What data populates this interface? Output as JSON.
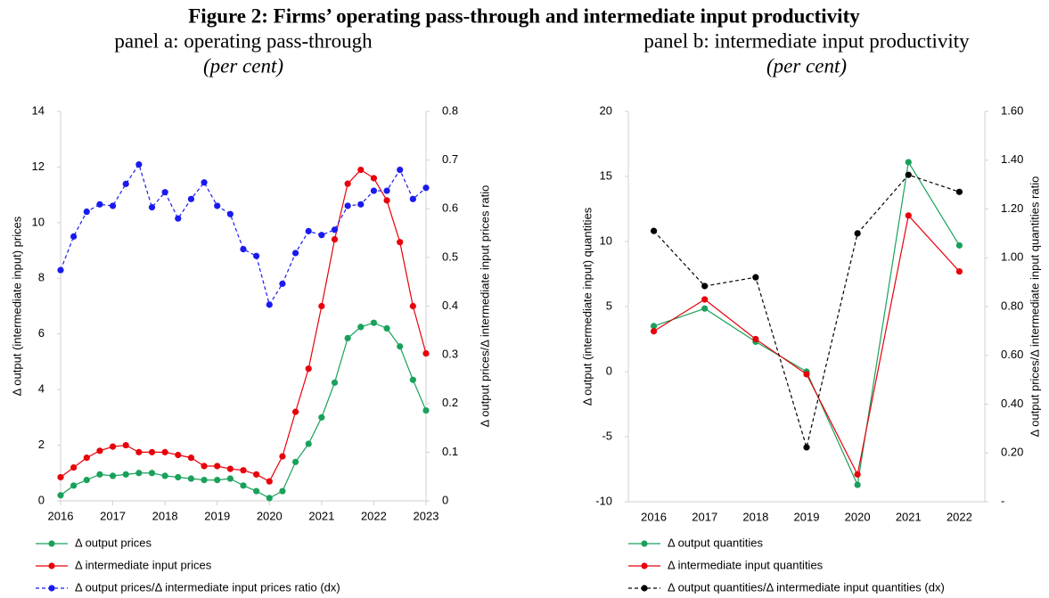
{
  "title": "Figure 2: Firms’ operating pass-through and intermediate input productivity",
  "chart_data": [
    {
      "type": "line",
      "title": "panel a: operating pass-through",
      "subtitle": "(per cent)",
      "ylabel": "Δ output (intermediate input) prices",
      "y2label": "Δ output prices/Δ intermediate input prices ratio",
      "x": [
        2016,
        2016.25,
        2016.5,
        2016.75,
        2017,
        2017.25,
        2017.5,
        2017.75,
        2018,
        2018.25,
        2018.5,
        2018.75,
        2019,
        2019.25,
        2019.5,
        2019.75,
        2020,
        2020.25,
        2020.5,
        2020.75,
        2021,
        2021.25,
        2021.5,
        2021.75,
        2022,
        2022.25,
        2022.5,
        2022.75,
        2023
      ],
      "xlim": [
        2016,
        2023
      ],
      "xticks": [
        2016,
        2017,
        2018,
        2019,
        2020,
        2021,
        2022,
        2023
      ],
      "ylim": [
        0,
        14
      ],
      "yticks": [
        0,
        2,
        4,
        6,
        8,
        10,
        12,
        14
      ],
      "y2lim": [
        0,
        0.8
      ],
      "y2ticks": [
        0,
        0.1,
        0.2,
        0.3,
        0.4,
        0.5,
        0.6,
        0.7,
        0.8
      ],
      "series": [
        {
          "name": "Δ output prices",
          "color": "#19a15b",
          "linestyle": "solid",
          "values": [
            0.2,
            0.55,
            0.75,
            0.95,
            0.9,
            0.95,
            1.0,
            1.0,
            0.9,
            0.85,
            0.8,
            0.75,
            0.75,
            0.8,
            0.55,
            0.35,
            0.1,
            0.35,
            1.4,
            2.05,
            3.0,
            4.25,
            5.85,
            6.25,
            6.4,
            6.2,
            5.55,
            4.35,
            3.25
          ]
        },
        {
          "name": "Δ intermediate input prices",
          "color": "#e8000b",
          "linestyle": "solid",
          "values": [
            0.85,
            1.2,
            1.55,
            1.8,
            1.95,
            2.0,
            1.75,
            1.75,
            1.75,
            1.65,
            1.55,
            1.25,
            1.25,
            1.15,
            1.1,
            0.95,
            0.7,
            1.6,
            3.2,
            4.75,
            7.0,
            9.4,
            11.4,
            11.9,
            11.6,
            10.8,
            9.3,
            7.0,
            5.3
          ]
        },
        {
          "name": "Δ output prices/Δ intermediate input prices ratio (dx)",
          "color": "#1a1aee",
          "linestyle": "dashed",
          "axis": "y2",
          "values": [
            0.474,
            0.543,
            0.594,
            0.609,
            0.606,
            0.651,
            0.691,
            0.603,
            0.634,
            0.58,
            0.62,
            0.654,
            0.606,
            0.589,
            0.517,
            0.503,
            0.403,
            0.446,
            0.509,
            0.554,
            0.546,
            0.557,
            0.606,
            0.609,
            0.637,
            0.637,
            0.68,
            0.62,
            0.643
          ]
        }
      ]
    },
    {
      "type": "line",
      "title": "panel b: intermediate input productivity",
      "subtitle": "(per cent)",
      "ylabel": "Δ output (intermediate input) quantities",
      "y2label": "Δ output prices/Δ intermediate input quantities ratio",
      "categories": [
        "2016",
        "2017",
        "2018",
        "2019",
        "2020",
        "2021",
        "2022"
      ],
      "ylim": [
        -10,
        20
      ],
      "yticks": [
        -10,
        -5,
        0,
        5,
        10,
        15,
        20
      ],
      "y2lim": [
        0,
        1.6
      ],
      "y2ticks": [
        {
          "value": 0,
          "label": "-"
        },
        {
          "value": 0.2,
          "label": "0.20"
        },
        {
          "value": 0.4,
          "label": "0.40"
        },
        {
          "value": 0.6,
          "label": "0.60"
        },
        {
          "value": 0.8,
          "label": "0.80"
        },
        {
          "value": 1.0,
          "label": "1.00"
        },
        {
          "value": 1.2,
          "label": "1.20"
        },
        {
          "value": 1.4,
          "label": "1.40"
        },
        {
          "value": 1.6,
          "label": "1.60"
        }
      ],
      "series": [
        {
          "name": "Δ output quantities",
          "color": "#19a15b",
          "linestyle": "solid",
          "values": [
            3.5,
            4.85,
            2.3,
            0.0,
            -8.7,
            16.1,
            9.7
          ]
        },
        {
          "name": "Δ intermediate input quantities",
          "color": "#e8000b",
          "linestyle": "solid",
          "values": [
            3.1,
            5.55,
            2.5,
            -0.2,
            -7.9,
            12.0,
            7.7
          ]
        },
        {
          "name": "Δ output quantities/Δ intermediate input quantities (dx)",
          "color": "#000000",
          "linestyle": "dashed",
          "axis": "y2",
          "values": [
            1.11,
            0.884,
            0.92,
            0.223,
            1.1,
            1.34,
            1.27
          ]
        }
      ]
    }
  ]
}
